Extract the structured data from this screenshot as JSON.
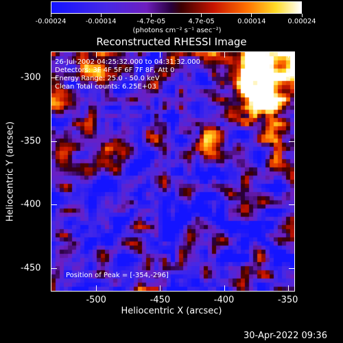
{
  "colorbar": {
    "tick_labels": [
      "-0.00024",
      "-0.00014",
      "-4.7e-05",
      "4.7e-05",
      "0.00014",
      "0.00024"
    ],
    "units": "(photons cm⁻² s⁻¹ asec⁻²)"
  },
  "title": "Reconstructed RHESSI Image",
  "info": {
    "time": "26-Jul-2002 04:25:32.000 to 04:31:32.000",
    "detectors": "Detectors: 3F 4F 5F 6F 7F 8F, Att 0",
    "energy": "Energy Range: 25.0 - 50.0 keV",
    "clean": "Clean     Total counts: 6.25E+03"
  },
  "peak": "Position of Peak = [-354,-296]",
  "axes": {
    "xlabel": "Heliocentric X (arcsec)",
    "ylabel": "Heliocentric Y (arcsec)",
    "xticks": [
      "-500",
      "-450",
      "-400",
      "-350"
    ],
    "yticks": [
      "-300",
      "-350",
      "-400",
      "-450"
    ],
    "xlim": [
      -535,
      -345
    ],
    "ylim": [
      -468,
      -280
    ]
  },
  "footer": "30-Apr-2022 09:36"
}
